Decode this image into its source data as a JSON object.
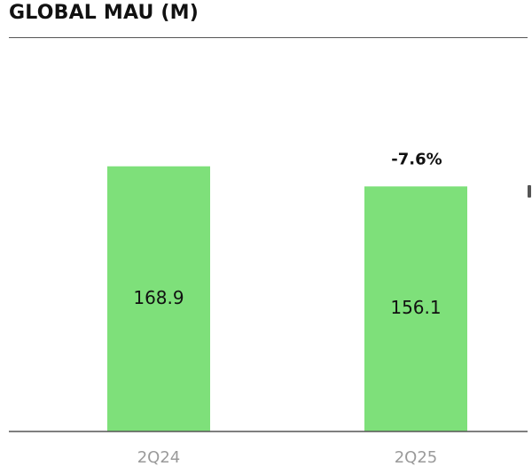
{
  "chart_data": {
    "type": "bar",
    "title": "GLOBAL MAU (M)",
    "categories": [
      "2Q24",
      "2Q25"
    ],
    "values": [
      168.9,
      156.1
    ],
    "value_labels": [
      "168.9",
      "156.1"
    ],
    "annotations": [
      {
        "category": "2Q25",
        "text": "-7.6%"
      }
    ],
    "xlabel": "",
    "ylabel": "",
    "ylim": [
      0,
      250
    ],
    "grid": false,
    "legend": "none",
    "colors": {
      "bar": "#7ee07a",
      "value_label": "#111111",
      "tick_label": "#9a9a9a",
      "annotation": "#111111",
      "axis": "#555555"
    }
  }
}
